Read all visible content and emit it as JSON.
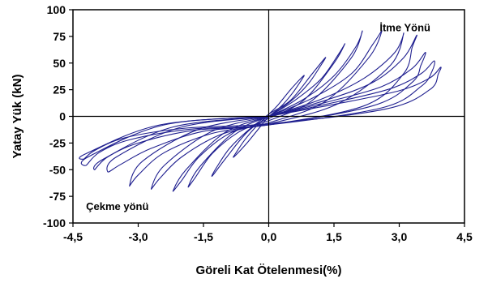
{
  "chart_data": {
    "type": "line",
    "title": "",
    "xlabel": "Göreli Kat Ötelenmesi(%)",
    "ylabel": "Yatay Yük (kN)",
    "xlim": [
      -4.5,
      4.5
    ],
    "ylim": [
      -100,
      100
    ],
    "x_ticks": [
      -4.5,
      -3.0,
      -1.5,
      0.0,
      1.5,
      3.0,
      4.5
    ],
    "x_tick_labels": [
      "-4,5",
      "-3,0",
      "-1,5",
      "0,0",
      "1,5",
      "3,0",
      "4,5"
    ],
    "y_ticks": [
      100,
      75,
      50,
      25,
      0,
      -25,
      -50,
      -75,
      -100
    ],
    "y_tick_labels": [
      "100",
      "75",
      "50",
      "25",
      "0",
      "-25",
      "-50",
      "-75",
      "-100"
    ],
    "grid": false,
    "zero_lines": true,
    "annotations": [
      {
        "text": "İtme Yönü",
        "x": 2.55,
        "y": 80
      },
      {
        "text": "Çekme yönü",
        "x": -4.2,
        "y": -88
      }
    ],
    "series_color": "#1f1f8f",
    "series": [
      {
        "x": [
          0,
          0.3,
          0.55,
          0.75,
          0.8,
          0.5,
          0.2,
          0,
          -0.3,
          -0.55,
          -0.75,
          -0.8,
          -0.5,
          -0.2,
          0
        ],
        "y": [
          0,
          10,
          22,
          34,
          38,
          25,
          10,
          2,
          -10,
          -22,
          -34,
          -38,
          -25,
          -10,
          0
        ]
      },
      {
        "x": [
          0,
          0.5,
          0.9,
          1.2,
          1.3,
          1.0,
          0.5,
          0,
          -0.5,
          -0.9,
          -1.2,
          -1.3,
          -1.0,
          -0.5,
          0
        ],
        "y": [
          0,
          14,
          30,
          48,
          55,
          40,
          15,
          2,
          -14,
          -30,
          -48,
          -56,
          -40,
          -15,
          0
        ]
      },
      {
        "x": [
          0,
          0.6,
          1.2,
          1.6,
          1.75,
          1.5,
          0.8,
          0,
          -0.7,
          -1.3,
          -1.7,
          -1.85,
          -1.6,
          -0.8,
          0
        ],
        "y": [
          0,
          15,
          35,
          58,
          68,
          50,
          15,
          -2,
          -15,
          -35,
          -58,
          -66,
          -48,
          -15,
          0
        ]
      },
      {
        "x": [
          0,
          0.8,
          1.5,
          2.0,
          2.15,
          1.9,
          1.0,
          0,
          -0.9,
          -1.6,
          -2.0,
          -2.2,
          -1.9,
          -1.0,
          0
        ],
        "y": [
          0,
          16,
          38,
          65,
          80,
          55,
          15,
          -4,
          -16,
          -38,
          -60,
          -70,
          -50,
          -15,
          0
        ]
      },
      {
        "x": [
          0,
          1.0,
          1.9,
          2.4,
          2.6,
          2.3,
          1.3,
          0,
          -1.1,
          -2.0,
          -2.5,
          -2.7,
          -2.4,
          -1.3,
          0
        ],
        "y": [
          0,
          17,
          40,
          68,
          80,
          55,
          14,
          -6,
          -17,
          -38,
          -58,
          -68,
          -46,
          -14,
          0
        ]
      },
      {
        "x": [
          0,
          1.2,
          2.2,
          2.9,
          3.1,
          2.8,
          1.6,
          0,
          -1.3,
          -2.4,
          -3.0,
          -3.2,
          -2.9,
          -1.6,
          0
        ],
        "y": [
          0,
          16,
          36,
          60,
          78,
          48,
          12,
          -7,
          -16,
          -34,
          -55,
          -65,
          -42,
          -12,
          0
        ]
      },
      {
        "x": [
          0,
          1.3,
          2.4,
          3.1,
          3.4,
          3.3,
          3.1,
          2.2,
          0,
          -1.5,
          -2.7,
          -3.4,
          -3.7,
          -3.5,
          -2.0,
          0
        ],
        "y": [
          0,
          15,
          32,
          55,
          76,
          65,
          40,
          10,
          -8,
          -14,
          -30,
          -45,
          -52,
          -38,
          -10,
          0
        ]
      },
      {
        "x": [
          0,
          1.4,
          2.6,
          3.3,
          3.6,
          3.5,
          3.3,
          2.4,
          0,
          -1.7,
          -3.0,
          -3.7,
          -4.0,
          -3.8,
          -2.2,
          0
        ],
        "y": [
          0,
          14,
          28,
          45,
          60,
          48,
          32,
          10,
          -8,
          -13,
          -25,
          -38,
          -50,
          -40,
          -10,
          0
        ]
      },
      {
        "x": [
          0,
          1.5,
          2.8,
          3.5,
          3.8,
          3.75,
          3.5,
          2.6,
          0,
          -1.8,
          -3.2,
          -3.9,
          -4.2,
          -4.15,
          -2.4,
          0
        ],
        "y": [
          0,
          13,
          26,
          40,
          52,
          42,
          28,
          8,
          -8,
          -12,
          -22,
          -34,
          -46,
          -38,
          -8,
          0
        ]
      },
      {
        "x": [
          0,
          1.6,
          3.0,
          3.7,
          3.95,
          3.9,
          3.7,
          2.7,
          0,
          -1.9,
          -3.3,
          -4.0,
          -4.25,
          -4.2,
          -2.5,
          0
        ],
        "y": [
          0,
          12,
          24,
          36,
          46,
          40,
          25,
          7,
          -7,
          -11,
          -20,
          -32,
          -40,
          -35,
          -8,
          0
        ]
      }
    ]
  }
}
